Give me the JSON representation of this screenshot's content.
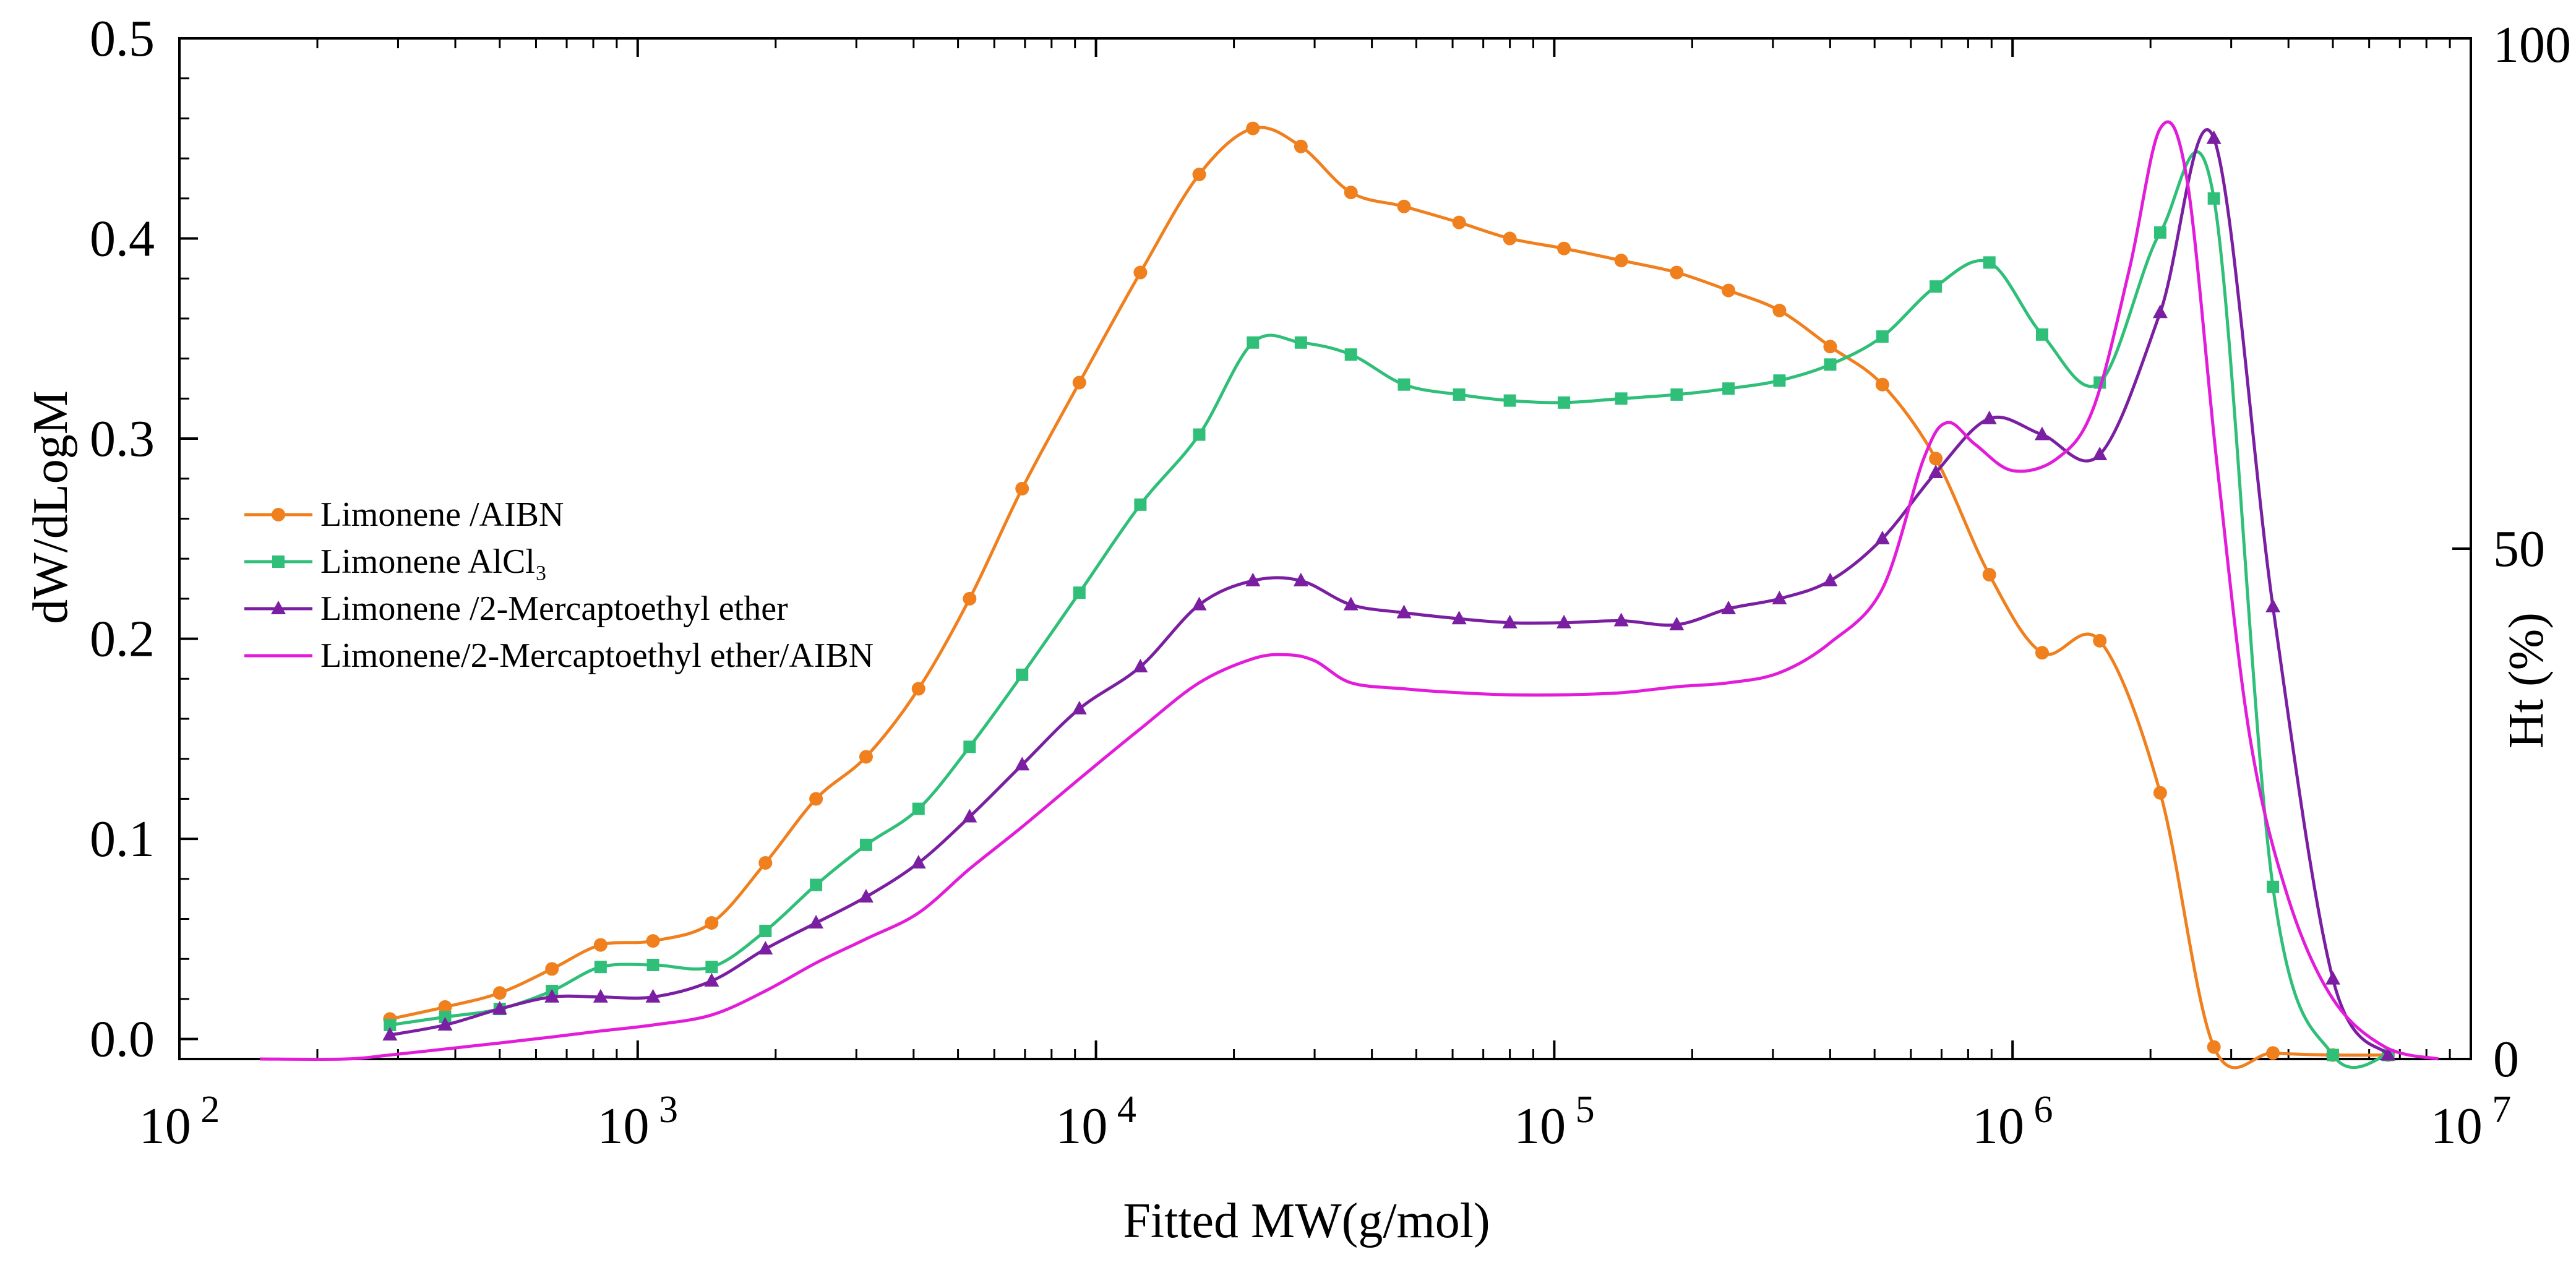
{
  "chart_data": {
    "type": "line",
    "xlabel": "Fitted MW(g/mol)",
    "ylabel": "dW/dLogM",
    "y2label": "Ht (%)",
    "xscale": "log",
    "xlim": [
      100,
      10000000
    ],
    "ylim": [
      -0.01,
      0.5
    ],
    "y2lim": [
      0,
      100
    ],
    "x_tick_values": [
      100,
      1000,
      10000,
      100000,
      1000000,
      10000000
    ],
    "x_ticks": [
      {
        "base": "10",
        "exp": "2"
      },
      {
        "base": "10",
        "exp": "3"
      },
      {
        "base": "10",
        "exp": "4"
      },
      {
        "base": "10",
        "exp": "5"
      },
      {
        "base": "10",
        "exp": "6"
      },
      {
        "base": "10",
        "exp": "7"
      }
    ],
    "y_ticks": [
      "0.0",
      "0.1",
      "0.2",
      "0.3",
      "0.4",
      "0.5"
    ],
    "y_tick_values": [
      0,
      0.1,
      0.2,
      0.3,
      0.4,
      0.5
    ],
    "y2_ticks": [
      "0",
      "50",
      "100"
    ],
    "y2_tick_values": [
      0,
      50,
      100
    ],
    "grid": false,
    "legend_position": "left",
    "series": [
      {
        "name": "Limonene /AIBN",
        "color": "#f07f1e",
        "marker": "circle",
        "x": [
          288,
          380,
          500,
          650,
          830,
          1080,
          1450,
          1900,
          2450,
          3150,
          4100,
          5300,
          6900,
          9200,
          12500,
          16800,
          22000,
          28000,
          36000,
          47000,
          62000,
          80000,
          105000,
          140000,
          185000,
          240000,
          310000,
          400000,
          520000,
          680000,
          890000,
          1160000,
          1550000,
          2100000,
          2750000,
          3700000,
          5000000,
          6600000
        ],
        "y": [
          0.01,
          0.016,
          0.023,
          0.035,
          0.047,
          0.049,
          0.058,
          0.088,
          0.12,
          0.141,
          0.175,
          0.22,
          0.275,
          0.328,
          0.383,
          0.432,
          0.455,
          0.446,
          0.423,
          0.416,
          0.408,
          0.4,
          0.395,
          0.389,
          0.383,
          0.374,
          0.364,
          0.346,
          0.327,
          0.29,
          0.232,
          0.193,
          0.199,
          0.123,
          -0.004,
          -0.007,
          -0.008,
          -0.008
        ]
      },
      {
        "name": "Limonene AlCl₃",
        "color": "#2fbf78",
        "marker": "square",
        "x": [
          288,
          380,
          500,
          650,
          830,
          1080,
          1450,
          1900,
          2450,
          3150,
          4100,
          5300,
          6900,
          9200,
          12500,
          16800,
          22000,
          28000,
          36000,
          47000,
          62000,
          80000,
          105000,
          140000,
          185000,
          240000,
          310000,
          400000,
          520000,
          680000,
          890000,
          1160000,
          1550000,
          2100000,
          2750000,
          3700000,
          5000000,
          6600000
        ],
        "y": [
          0.007,
          0.011,
          0.015,
          0.024,
          0.036,
          0.037,
          0.036,
          0.054,
          0.077,
          0.097,
          0.115,
          0.146,
          0.182,
          0.223,
          0.267,
          0.302,
          0.348,
          0.348,
          0.342,
          0.327,
          0.322,
          0.319,
          0.318,
          0.32,
          0.322,
          0.325,
          0.329,
          0.337,
          0.351,
          0.376,
          0.388,
          0.352,
          0.328,
          0.403,
          0.42,
          0.076,
          -0.008,
          -0.008
        ]
      },
      {
        "name": "Limonene /2-Mercaptoethyl ether",
        "color": "#7b1fa2",
        "marker": "triangle",
        "x": [
          288,
          380,
          500,
          650,
          830,
          1080,
          1450,
          1900,
          2450,
          3150,
          4100,
          5300,
          6900,
          9200,
          12500,
          16800,
          22000,
          28000,
          36000,
          47000,
          62000,
          80000,
          105000,
          140000,
          185000,
          240000,
          310000,
          400000,
          520000,
          680000,
          890000,
          1160000,
          1550000,
          2100000,
          2750000,
          3700000,
          5000000,
          6600000
        ],
        "y": [
          0.002,
          0.007,
          0.015,
          0.021,
          0.021,
          0.021,
          0.029,
          0.045,
          0.058,
          0.071,
          0.088,
          0.111,
          0.137,
          0.165,
          0.186,
          0.217,
          0.229,
          0.229,
          0.217,
          0.213,
          0.21,
          0.208,
          0.208,
          0.209,
          0.207,
          0.215,
          0.22,
          0.229,
          0.25,
          0.283,
          0.31,
          0.302,
          0.292,
          0.363,
          0.45,
          0.216,
          0.03,
          -0.008
        ]
      },
      {
        "name": "Limonene/2-Mercaptoethyl ether/AIBN",
        "color": "#e21cd8",
        "marker": "none",
        "x": [
          150,
          230,
          288,
          380,
          500,
          650,
          830,
          1080,
          1450,
          1900,
          2450,
          3150,
          4100,
          5300,
          6900,
          9200,
          12500,
          16800,
          22000,
          26000,
          30000,
          36000,
          47000,
          62000,
          80000,
          105000,
          140000,
          185000,
          240000,
          310000,
          400000,
          520000,
          640000,
          720000,
          830000,
          1000000,
          1250000,
          1500000,
          1800000,
          2100000,
          2400000,
          2800000,
          3300000,
          4000000,
          5000000,
          6500000,
          8500000
        ],
        "y": [
          -0.01,
          -0.01,
          -0.008,
          -0.005,
          -0.002,
          0.001,
          0.004,
          0.007,
          0.012,
          0.024,
          0.038,
          0.05,
          0.063,
          0.085,
          0.106,
          0.13,
          0.155,
          0.178,
          0.19,
          0.192,
          0.189,
          0.178,
          0.175,
          0.173,
          0.172,
          0.172,
          0.173,
          0.176,
          0.178,
          0.183,
          0.198,
          0.225,
          0.29,
          0.308,
          0.297,
          0.284,
          0.29,
          0.315,
          0.385,
          0.455,
          0.43,
          0.285,
          0.15,
          0.07,
          0.02,
          -0.004,
          -0.01
        ]
      }
    ]
  }
}
